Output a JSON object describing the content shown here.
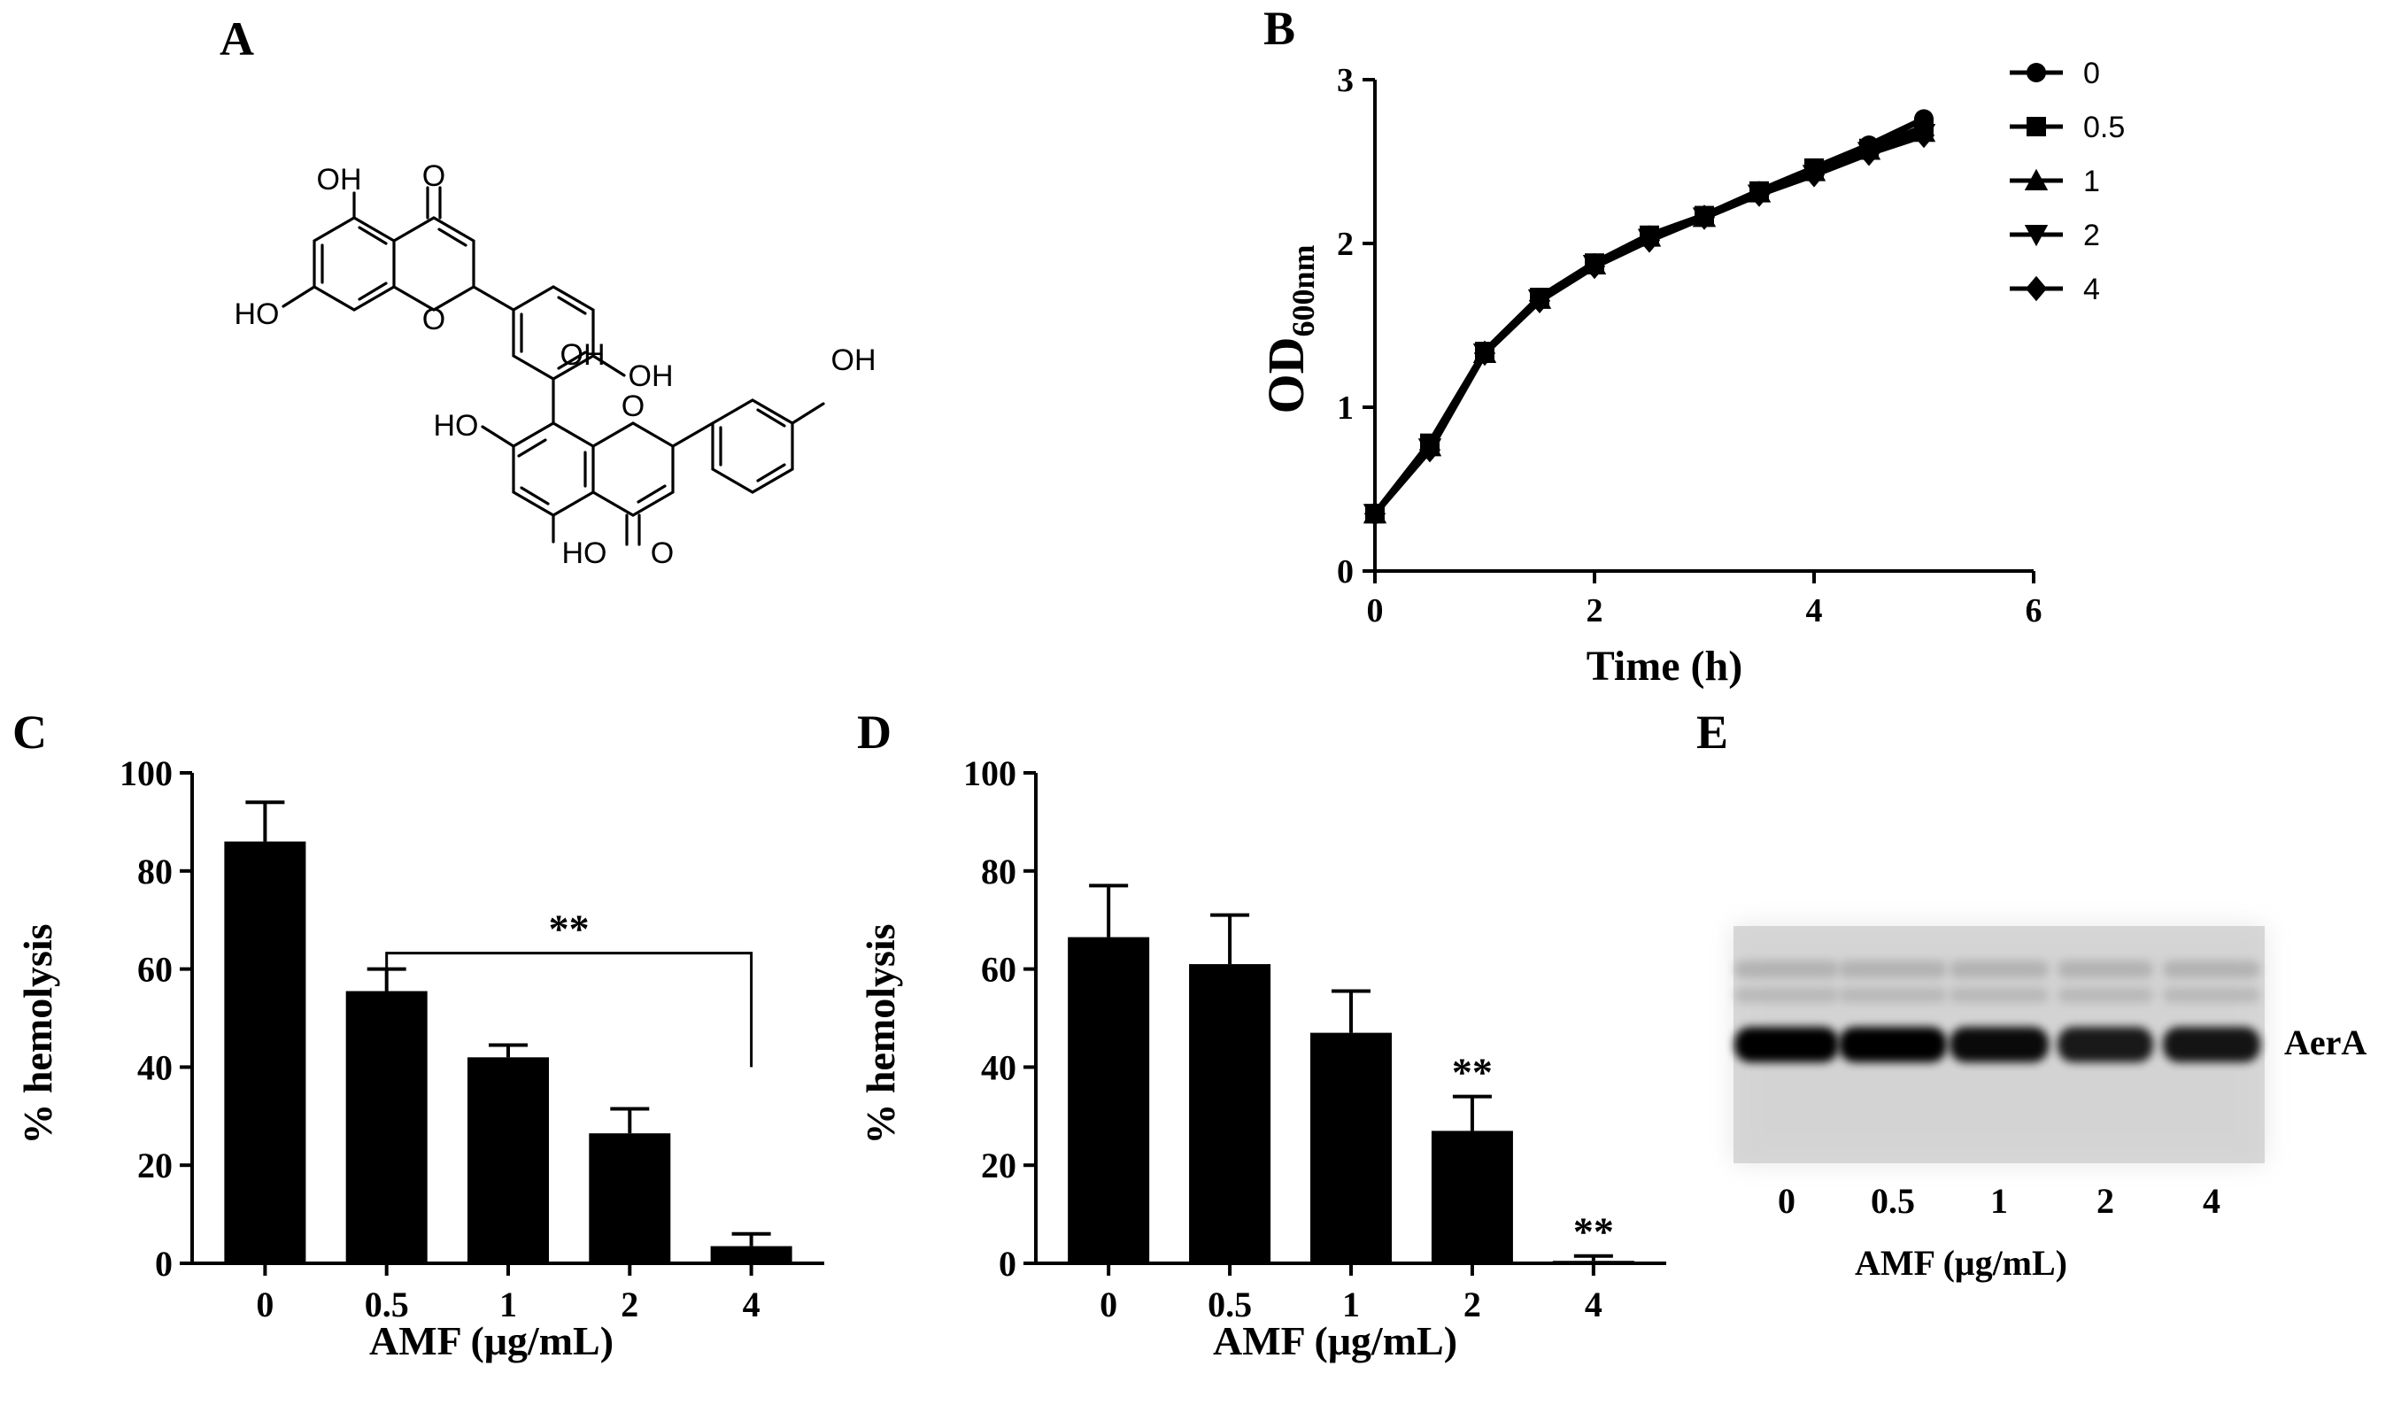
{
  "panels": {
    "A": "A",
    "B": "B",
    "C": "C",
    "D": "D",
    "E": "E"
  },
  "structure": {
    "labels": [
      "OH",
      "O",
      "HO",
      "O",
      "OH",
      "HO",
      "O",
      "OH",
      "OH",
      "O"
    ]
  },
  "chart_data": [
    {
      "id": "B",
      "type": "line",
      "xlabel": "Time (h)",
      "ylabel_main": "OD",
      "ylabel_sub": "600nm",
      "xlim": [
        0,
        6
      ],
      "ylim": [
        0,
        3
      ],
      "xticks": [
        "0",
        "2",
        "4",
        "6"
      ],
      "yticks": [
        "0",
        "1",
        "2",
        "3"
      ],
      "x": [
        0,
        0.5,
        1,
        1.5,
        2,
        2.5,
        3,
        3.5,
        4,
        4.5,
        5
      ],
      "legend_position": "top-right",
      "series": [
        {
          "name": "0",
          "marker": "circle",
          "values": [
            0.35,
            0.77,
            1.34,
            1.67,
            1.88,
            2.05,
            2.17,
            2.32,
            2.46,
            2.6,
            2.76
          ]
        },
        {
          "name": "0.5",
          "marker": "square",
          "values": [
            0.35,
            0.78,
            1.34,
            1.67,
            1.88,
            2.05,
            2.17,
            2.32,
            2.46,
            2.58,
            2.71
          ]
        },
        {
          "name": "1",
          "marker": "triangle-up",
          "values": [
            0.35,
            0.76,
            1.33,
            1.66,
            1.87,
            2.04,
            2.16,
            2.31,
            2.44,
            2.57,
            2.68
          ]
        },
        {
          "name": "2",
          "marker": "triangle-down",
          "values": [
            0.35,
            0.75,
            1.33,
            1.66,
            1.87,
            2.03,
            2.16,
            2.3,
            2.42,
            2.56,
            2.67
          ]
        },
        {
          "name": "4",
          "marker": "diamond",
          "values": [
            0.35,
            0.74,
            1.33,
            1.65,
            1.86,
            2.02,
            2.16,
            2.3,
            2.42,
            2.55,
            2.66
          ]
        }
      ]
    },
    {
      "id": "C",
      "type": "bar",
      "xlabel": "AMF (μg/mL)",
      "ylabel": "% hemolysis",
      "ylim": [
        0,
        100
      ],
      "yticks": [
        "0",
        "20",
        "40",
        "60",
        "80",
        "100"
      ],
      "categories": [
        "0",
        "0.5",
        "1",
        "2",
        "4"
      ],
      "values": [
        86,
        55.5,
        42,
        26.5,
        3.5
      ],
      "errors": [
        8,
        4.5,
        2.5,
        5,
        2.5
      ],
      "bracket": {
        "from": 1,
        "to": 4,
        "label": "**"
      }
    },
    {
      "id": "D",
      "type": "bar",
      "xlabel": "AMF (μg/mL)",
      "ylabel": "% hemolysis",
      "ylim": [
        0,
        100
      ],
      "yticks": [
        "0",
        "20",
        "40",
        "60",
        "80",
        "100"
      ],
      "categories": [
        "0",
        "0.5",
        "1",
        "2",
        "4"
      ],
      "values": [
        66.5,
        61,
        47,
        27,
        0.5
      ],
      "errors": [
        10.5,
        10,
        8.5,
        7,
        1
      ],
      "annotations": [
        null,
        null,
        null,
        "**",
        "**"
      ]
    },
    {
      "id": "E",
      "type": "blot",
      "band_label": "AerA",
      "lanes": [
        "0",
        "0.5",
        "1",
        "2",
        "4"
      ],
      "xlabel": "AMF (μg/mL)"
    }
  ]
}
